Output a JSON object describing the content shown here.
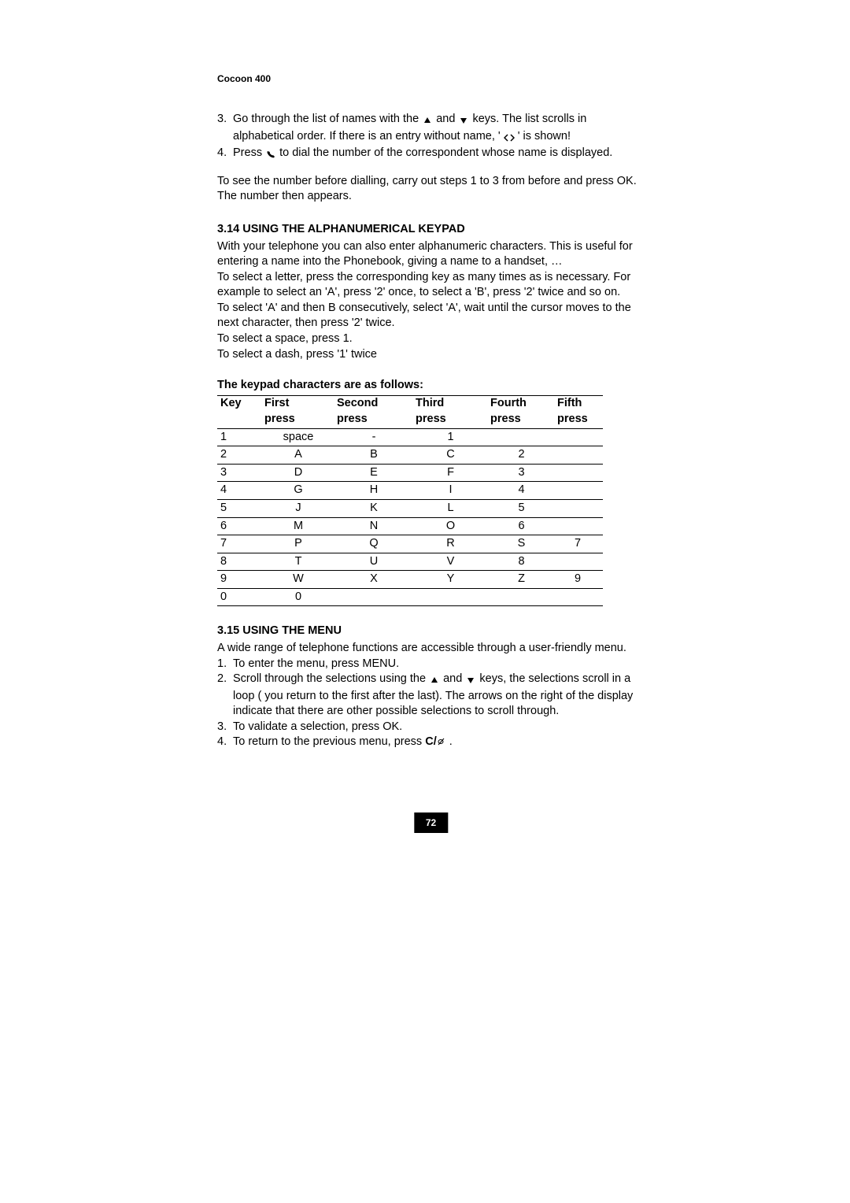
{
  "header": "Cocoon 400",
  "steps_top": [
    {
      "n": "3.",
      "text": "Go through the list of names with the",
      "text2": " and ",
      "text3": " keys. The list scrolls in",
      "cont": "alphabetical order. If there is an entry without name, ' ",
      "cont2": " ' is shown!"
    },
    {
      "n": "4.",
      "text": "Press ",
      "text2": " to dial the number of the correspondent whose name is displayed."
    }
  ],
  "para1": "To see the number before dialling, carry out steps 1 to 3 from before and press OK. The number then appears.",
  "section314": {
    "title": "3.14 USING THE ALPHANUMERICAL KEYPAD",
    "body": [
      "With your telephone you can also enter alphanumeric characters. This is useful for entering a name into the Phonebook, giving a name to a handset, …",
      "To select a letter, press the corresponding key as many times as is necessary. For example to select an 'A', press '2' once, to select a 'B', press '2' twice and so on.",
      "To select 'A' and then B consecutively, select 'A', wait until the cursor moves to the next character, then press '2' twice.",
      "To select a space, press 1.",
      "To select a dash, press '1' twice"
    ]
  },
  "table": {
    "caption": "The keypad characters are as follows:",
    "head1": [
      "Key",
      "First",
      "Second",
      "Third",
      "Fourth",
      "Fifth"
    ],
    "head2": [
      "",
      "press",
      "press",
      "press",
      "press",
      "press"
    ],
    "rows": [
      [
        "1",
        "space",
        "-",
        "1",
        "",
        ""
      ],
      [
        "2",
        "A",
        "B",
        "C",
        "2",
        ""
      ],
      [
        "3",
        "D",
        "E",
        "F",
        "3",
        ""
      ],
      [
        "4",
        "G",
        "H",
        "I",
        "4",
        ""
      ],
      [
        "5",
        "J",
        "K",
        "L",
        "5",
        ""
      ],
      [
        "6",
        "M",
        "N",
        "O",
        "6",
        ""
      ],
      [
        "7",
        "P",
        "Q",
        "R",
        "S",
        "7"
      ],
      [
        "8",
        "T",
        "U",
        "V",
        "8",
        ""
      ],
      [
        "9",
        "W",
        "X",
        "Y",
        "Z",
        "9"
      ],
      [
        "0",
        "0",
        "",
        "",
        "",
        ""
      ]
    ]
  },
  "section315": {
    "title": "3.15 USING THE MENU",
    "intro": "A wide range of telephone functions are accessible through a user-friendly menu.",
    "items": [
      {
        "n": "1.",
        "text": "To enter the menu, press MENU."
      },
      {
        "n": "2.",
        "text": "Scroll through the selections using the ",
        "text2": " and ",
        "text3": " keys, the selections scroll in a",
        "cont": "loop ( you return to the first after the last). The arrows on the right of the display indicate that there are other possible selections to scroll through."
      },
      {
        "n": "3.",
        "text": "To validate a selection, press OK."
      },
      {
        "n": "4.",
        "text": "To return to the previous menu, press ",
        "text2": " ."
      }
    ]
  },
  "page_number": "72"
}
